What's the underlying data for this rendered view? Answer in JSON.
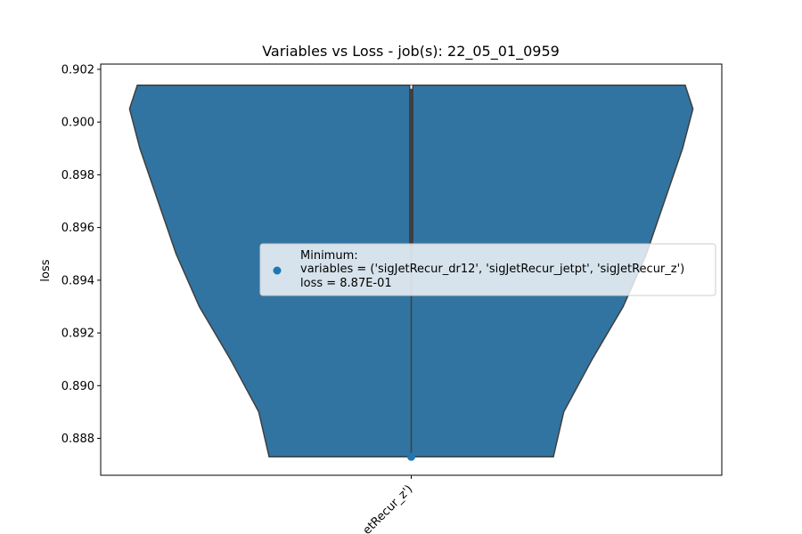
{
  "chart_data": {
    "type": "violin",
    "title": "Variables vs Loss - job(s): 22_05_01_0959",
    "xlabel": "",
    "ylabel": "loss",
    "categories": [
      "('sigJetRecur_dr12', 'sigJetRecur_jetpt', 'sigJetRecur_z')"
    ],
    "category_visible_text": "etRecur_z')",
    "ylim": [
      0.8866,
      0.9022
    ],
    "yticks": [
      0.888,
      0.89,
      0.892,
      0.894,
      0.896,
      0.898,
      0.9,
      0.902
    ],
    "ytick_labels": [
      "0.888",
      "0.890",
      "0.892",
      "0.894",
      "0.896",
      "0.898",
      "0.900",
      "0.902"
    ],
    "violin": {
      "min": 0.8873,
      "max": 0.9014,
      "density_profile": [
        {
          "y": 0.8873,
          "half_width": 0.55
        },
        {
          "y": 0.889,
          "half_width": 0.59
        },
        {
          "y": 0.891,
          "half_width": 0.7
        },
        {
          "y": 0.893,
          "half_width": 0.82
        },
        {
          "y": 0.895,
          "half_width": 0.91
        },
        {
          "y": 0.897,
          "half_width": 0.98
        },
        {
          "y": 0.899,
          "half_width": 1.05
        },
        {
          "y": 0.9005,
          "half_width": 1.09
        },
        {
          "y": 0.9014,
          "half_width": 1.06
        }
      ],
      "color": "#3274a1",
      "edge_color": "#3f3f3f"
    },
    "box": {
      "q1": 0.8953,
      "q3": 0.9014,
      "whisker_low": 0.8873,
      "whisker_high": 0.9014
    },
    "minimum_point": {
      "x_index": 0,
      "y": 0.8873,
      "color": "#1f77b4"
    },
    "legend": {
      "placement": "center-right",
      "lines": [
        "Minimum:",
        "variables = ('sigJetRecur_dr12', 'sigJetRecur_jetpt', 'sigJetRecur_z')",
        "loss = 8.87E-01"
      ]
    }
  }
}
